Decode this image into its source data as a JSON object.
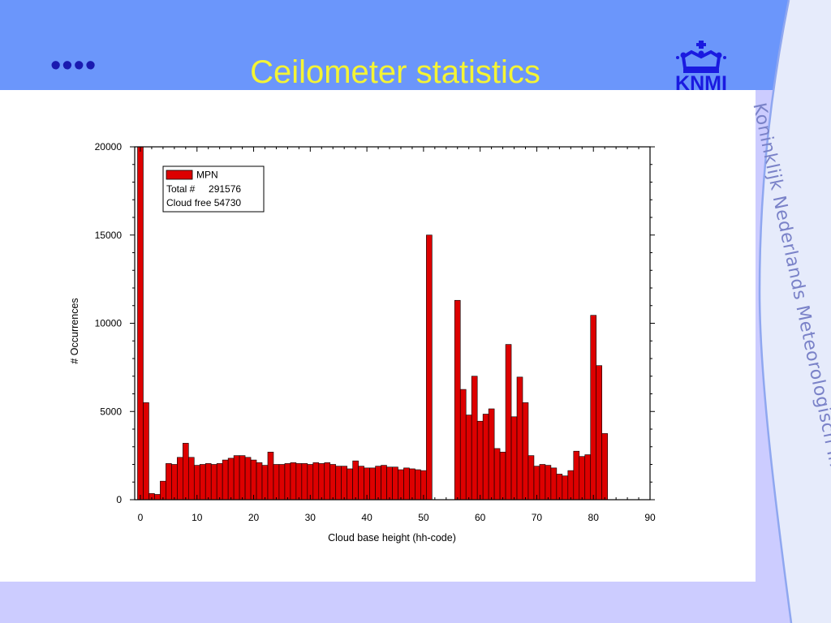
{
  "slide": {
    "bullet": "••••",
    "title": "Ceilometer statistics",
    "logo_text": "KNMI",
    "side_text": "Koninklijk Nederlands Meteorologisch Instituut",
    "colors": {
      "top_band": "#6b96fb",
      "bottom_band": "#ccccff",
      "side_strip": "#e6ebfb",
      "title": "#f4f434",
      "logo": "#1a1ae0",
      "bar_fill": "#dd0000"
    }
  },
  "chart_data": {
    "type": "bar",
    "xlabel": "Cloud base height (hh-code)",
    "ylabel": "# Occurrences",
    "xlim": [
      -1,
      90
    ],
    "ylim": [
      0,
      20000
    ],
    "x_ticks": [
      0,
      10,
      20,
      30,
      40,
      50,
      60,
      70,
      80,
      90
    ],
    "y_ticks": [
      0,
      5000,
      10000,
      15000,
      20000
    ],
    "x_tick_labels": [
      "0",
      "10",
      "20",
      "30",
      "40",
      "50",
      "60",
      "70",
      "80",
      "90"
    ],
    "y_tick_labels": [
      "0",
      "5000",
      "10000",
      "15000",
      "20000"
    ],
    "legend": {
      "position": "top-left",
      "series_name": "MPN",
      "lines": [
        "Total #     291576",
        "Cloud free 54730"
      ]
    },
    "x": [
      0,
      1,
      2,
      3,
      4,
      5,
      6,
      7,
      8,
      9,
      10,
      11,
      12,
      13,
      14,
      15,
      16,
      17,
      18,
      19,
      20,
      21,
      22,
      23,
      24,
      25,
      26,
      27,
      28,
      29,
      30,
      31,
      32,
      33,
      34,
      35,
      36,
      37,
      38,
      39,
      40,
      41,
      42,
      43,
      44,
      45,
      46,
      47,
      48,
      49,
      50,
      51,
      56,
      57,
      58,
      59,
      60,
      61,
      62,
      63,
      64,
      65,
      66,
      67,
      68,
      69,
      70,
      71,
      72,
      73,
      74,
      75,
      76,
      77,
      78,
      79,
      80,
      81,
      82
    ],
    "values": [
      20000,
      5500,
      350,
      300,
      1050,
      2050,
      2000,
      2400,
      3200,
      2400,
      1950,
      2000,
      2050,
      2000,
      2050,
      2250,
      2350,
      2500,
      2500,
      2400,
      2250,
      2100,
      1950,
      2700,
      2000,
      2000,
      2050,
      2100,
      2050,
      2050,
      2000,
      2100,
      2050,
      2100,
      2000,
      1900,
      1900,
      1750,
      2200,
      1900,
      1800,
      1800,
      1900,
      1950,
      1850,
      1850,
      1700,
      1800,
      1750,
      1700,
      1650,
      15000,
      11300,
      6250,
      4800,
      7000,
      4450,
      4850,
      5150,
      2900,
      2700,
      8800,
      4700,
      6950,
      5500,
      2500,
      1900,
      2000,
      1950,
      1800,
      1450,
      1350,
      1650,
      2750,
      2450,
      2550,
      10450,
      7600,
      3750
    ]
  }
}
